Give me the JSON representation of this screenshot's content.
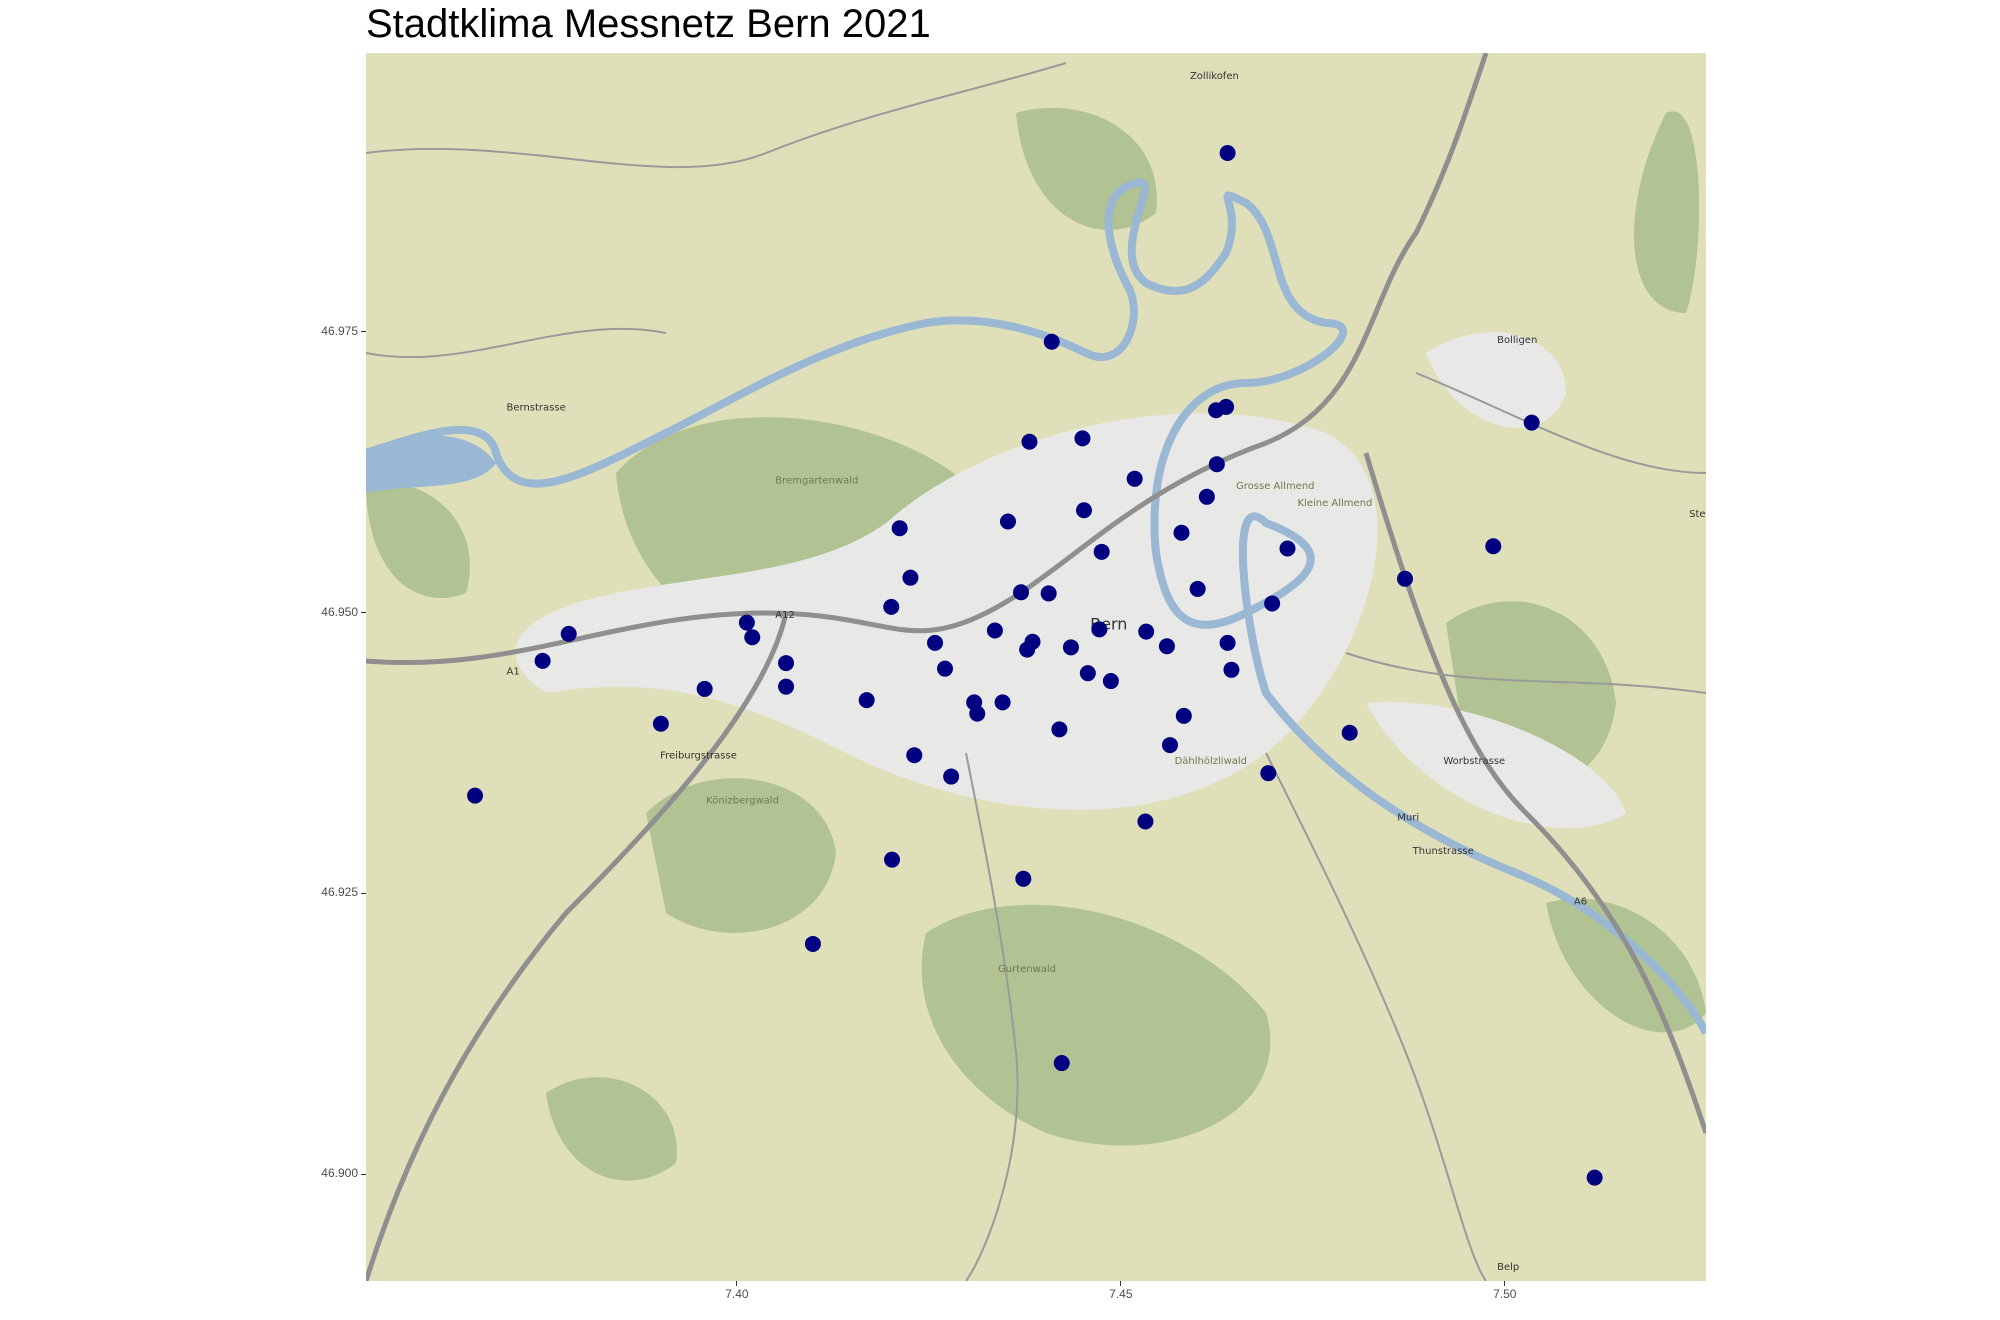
{
  "chart_data": {
    "type": "scatter",
    "title": "Stadtklima Messnetz Bern 2021",
    "xlabel": "",
    "ylabel": "",
    "background": "street map tiles (Bern area)",
    "xlim": [
      7.3517,
      7.5262
    ],
    "ylim": [
      46.8905,
      46.9998
    ],
    "x_ticks": [
      "7.40",
      "7.45",
      "7.50"
    ],
    "x_tick_values": [
      7.4,
      7.45,
      7.5
    ],
    "y_ticks": [
      "46.900",
      "46.925",
      "46.950",
      "46.975"
    ],
    "y_tick_values": [
      46.9,
      46.925,
      46.95,
      46.975
    ],
    "grid": false,
    "point_color": "#000080",
    "map_labels": [
      "Zollikofen",
      "Bolligen",
      "Bern",
      "Muri",
      "Belp",
      "Stettlen",
      "Bremgartenwald",
      "Könizbergwald",
      "Gurtenwald",
      "Grosse Allmend",
      "Kleine Allmend",
      "Dählhölzliwald",
      "Bernstrasse",
      "Freiburgstrasse",
      "Worbstrasse",
      "Thunstrasse",
      "A1",
      "A6",
      "A12"
    ],
    "points": [
      [
        7.4639,
        46.9909
      ],
      [
        7.441,
        46.9741
      ],
      [
        7.5035,
        46.9669
      ],
      [
        7.4624,
        46.968
      ],
      [
        7.4637,
        46.9683
      ],
      [
        7.4381,
        46.9652
      ],
      [
        7.445,
        46.9655
      ],
      [
        7.4625,
        46.9632
      ],
      [
        7.4518,
        46.9619
      ],
      [
        7.4612,
        46.9603
      ],
      [
        7.4452,
        46.9591
      ],
      [
        7.4212,
        46.9575
      ],
      [
        7.4353,
        46.9581
      ],
      [
        7.4579,
        46.9571
      ],
      [
        7.4717,
        46.9557
      ],
      [
        7.4985,
        46.9559
      ],
      [
        7.4475,
        46.9554
      ],
      [
        7.487,
        46.953
      ],
      [
        7.4226,
        46.9531
      ],
      [
        7.437,
        46.9518
      ],
      [
        7.4406,
        46.9517
      ],
      [
        7.46,
        46.9521
      ],
      [
        7.4697,
        46.9508
      ],
      [
        7.4201,
        46.9505
      ],
      [
        7.3781,
        46.9481
      ],
      [
        7.4013,
        46.9491
      ],
      [
        7.402,
        46.9478
      ],
      [
        7.3747,
        46.9457
      ],
      [
        7.4336,
        46.9484
      ],
      [
        7.4472,
        46.9485
      ],
      [
        7.4533,
        46.9483
      ],
      [
        7.4258,
        46.9473
      ],
      [
        7.4385,
        46.9474
      ],
      [
        7.4378,
        46.9467
      ],
      [
        7.4435,
        46.9469
      ],
      [
        7.456,
        46.947
      ],
      [
        7.4639,
        46.9473
      ],
      [
        7.4064,
        46.9455
      ],
      [
        7.4271,
        46.945
      ],
      [
        7.4457,
        46.9446
      ],
      [
        7.4487,
        46.9439
      ],
      [
        7.4644,
        46.9449
      ],
      [
        7.3958,
        46.9432
      ],
      [
        7.4064,
        46.9434
      ],
      [
        7.4169,
        46.9422
      ],
      [
        7.4309,
        46.942
      ],
      [
        7.4346,
        46.942
      ],
      [
        7.4313,
        46.941
      ],
      [
        7.4582,
        46.9408
      ],
      [
        7.3901,
        46.9401
      ],
      [
        7.442,
        46.9396
      ],
      [
        7.4798,
        46.9393
      ],
      [
        7.4564,
        46.9382
      ],
      [
        7.4231,
        46.9373
      ],
      [
        7.4692,
        46.9357
      ],
      [
        7.4279,
        46.9354
      ],
      [
        7.3659,
        46.9337
      ],
      [
        7.4532,
        46.9314
      ],
      [
        7.4202,
        46.928
      ],
      [
        7.4373,
        46.9263
      ],
      [
        7.4099,
        46.9205
      ],
      [
        7.4423,
        46.9099
      ],
      [
        7.5117,
        46.8997
      ]
    ]
  }
}
